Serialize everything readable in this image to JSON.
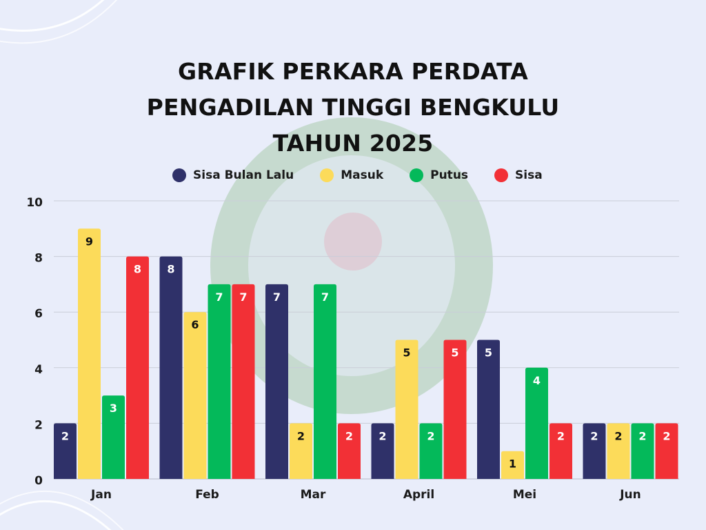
{
  "title_lines": [
    "GRAFIK PERKARA PERDATA",
    "PENGADILAN TINGGI BENGKULU",
    "TAHUN 2025"
  ],
  "legend": [
    {
      "label": "Sisa Bulan Lalu",
      "color": "#2f3169"
    },
    {
      "label": "Masuk",
      "color": "#fcdb5a"
    },
    {
      "label": "Putus",
      "color": "#04b95a"
    },
    {
      "label": "Sisa",
      "color": "#f23036"
    }
  ],
  "chart_data": {
    "type": "bar",
    "categories": [
      "Jan",
      "Feb",
      "Mar",
      "April",
      "Mei",
      "Jun"
    ],
    "series": [
      {
        "name": "Sisa Bulan Lalu",
        "color": "#2f3169",
        "values": [
          2,
          8,
          7,
          2,
          5,
          2
        ]
      },
      {
        "name": "Masuk",
        "color": "#fcdb5a",
        "values": [
          9,
          6,
          2,
          5,
          1,
          2
        ]
      },
      {
        "name": "Putus",
        "color": "#04b95a",
        "values": [
          3,
          7,
          7,
          2,
          4,
          2
        ]
      },
      {
        "name": "Sisa",
        "color": "#f23036",
        "values": [
          8,
          7,
          2,
          5,
          2,
          2
        ]
      }
    ],
    "title": "GRAFIK PERKARA PERDATA PENGADILAN TINGGI BENGKULU TAHUN 2025",
    "ylim": [
      0,
      10
    ],
    "yticks": [
      0,
      2,
      4,
      6,
      8,
      10
    ],
    "grid": true,
    "legend_position": "top-center",
    "data_labels": true
  }
}
